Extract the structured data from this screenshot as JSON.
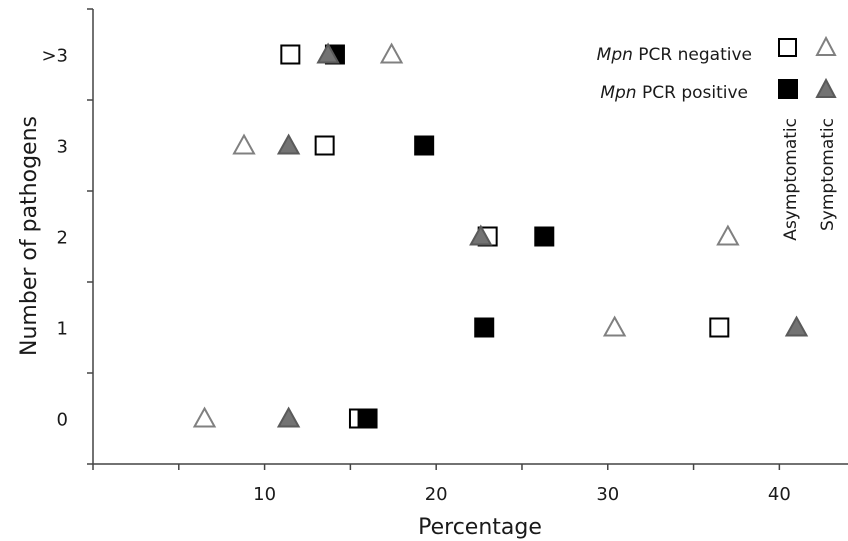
{
  "chart_data": {
    "type": "scatter",
    "xlabel": "Percentage",
    "ylabel": "Number of pathogens",
    "xlim": [
      0,
      44
    ],
    "ylim": [
      -0.5,
      4.5
    ],
    "x_ticks": [
      10,
      20,
      30,
      40
    ],
    "categories": [
      "0",
      "1",
      "2",
      "3",
      ">3"
    ],
    "legend": {
      "rows": [
        {
          "italic": "Mpn",
          "text": " PCR negative",
          "fill": "open"
        },
        {
          "italic": "Mpn",
          "text": " PCR positive",
          "fill": "filled"
        }
      ],
      "columns": [
        "Asymptomatic",
        "Symptomatic"
      ]
    },
    "series": [
      {
        "name": "Asymptomatic, Mpn PCR negative",
        "marker": "square",
        "fill": "none",
        "stroke": "#000000",
        "points": [
          {
            "x": 15.5,
            "y": 0
          },
          {
            "x": 36.5,
            "y": 1
          },
          {
            "x": 23.0,
            "y": 2
          },
          {
            "x": 13.5,
            "y": 3
          },
          {
            "x": 11.5,
            "y": 4
          }
        ]
      },
      {
        "name": "Asymptomatic, Mpn PCR positive",
        "marker": "square",
        "fill": "#000000",
        "stroke": "#000000",
        "points": [
          {
            "x": 16.0,
            "y": 0
          },
          {
            "x": 22.8,
            "y": 1
          },
          {
            "x": 26.3,
            "y": 2
          },
          {
            "x": 19.3,
            "y": 3
          },
          {
            "x": 14.1,
            "y": 4
          }
        ]
      },
      {
        "name": "Symptomatic, Mpn PCR negative",
        "marker": "triangle",
        "fill": "none",
        "stroke": "#808080",
        "points": [
          {
            "x": 6.5,
            "y": 0
          },
          {
            "x": 30.4,
            "y": 1
          },
          {
            "x": 37.0,
            "y": 2
          },
          {
            "x": 8.8,
            "y": 3
          },
          {
            "x": 17.4,
            "y": 4
          }
        ]
      },
      {
        "name": "Symptomatic, Mpn PCR positive",
        "marker": "triangle",
        "fill": "#737373",
        "stroke": "#5a5a5a",
        "points": [
          {
            "x": 11.4,
            "y": 0
          },
          {
            "x": 41.0,
            "y": 1
          },
          {
            "x": 22.6,
            "y": 2
          },
          {
            "x": 11.4,
            "y": 3
          },
          {
            "x": 13.7,
            "y": 4
          }
        ]
      }
    ]
  }
}
